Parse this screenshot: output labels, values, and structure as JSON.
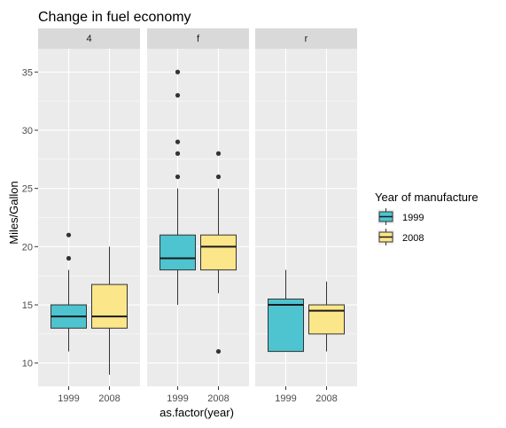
{
  "chart_data": {
    "type": "boxplot",
    "title": "Change in fuel economy",
    "xlabel": "as.factor(year)",
    "ylabel": "Miles/Gallon",
    "ylim": [
      8,
      37
    ],
    "y_ticks": [
      10,
      15,
      20,
      25,
      30,
      35
    ],
    "categories": [
      "1999",
      "2008"
    ],
    "legend": {
      "title": "Year of manufacture",
      "placement": "right",
      "entries": [
        {
          "label": "1999",
          "color": "#4DC4CF"
        },
        {
          "label": "2008",
          "color": "#FCE68A"
        }
      ]
    },
    "panels": [
      {
        "label": "4",
        "boxes": [
          {
            "x": "1999",
            "min": 11,
            "q1": 13,
            "median": 14,
            "q3": 15,
            "max": 18,
            "outliers": [
              19,
              21
            ]
          },
          {
            "x": "2008",
            "min": 9,
            "q1": 13,
            "median": 14,
            "q3": 16.75,
            "max": 20,
            "outliers": []
          }
        ]
      },
      {
        "label": "f",
        "boxes": [
          {
            "x": "1999",
            "min": 15,
            "q1": 18,
            "median": 19,
            "q3": 21,
            "max": 25,
            "outliers": [
              26,
              28,
              29,
              33,
              35
            ]
          },
          {
            "x": "2008",
            "min": 16,
            "q1": 18,
            "median": 20,
            "q3": 21,
            "max": 25,
            "outliers": [
              11,
              26,
              28
            ]
          }
        ]
      },
      {
        "label": "r",
        "boxes": [
          {
            "x": "1999",
            "min": 11,
            "q1": 11,
            "median": 15,
            "q3": 15.5,
            "max": 18,
            "outliers": []
          },
          {
            "x": "2008",
            "min": 11,
            "q1": 12.5,
            "median": 14.5,
            "q3": 15,
            "max": 17,
            "outliers": []
          }
        ]
      }
    ]
  },
  "colors": {
    "panel_bg": "#EBEBEB",
    "strip_bg": "#D9D9D9",
    "grid": "#FFFFFF",
    "box_1999": "#4DC4CF",
    "box_2008": "#FCE68A",
    "line": "#333333"
  }
}
